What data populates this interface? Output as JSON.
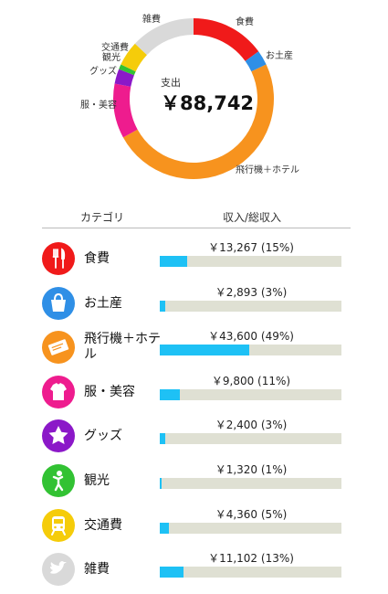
{
  "summary": {
    "total_label": "支出",
    "total_value": "￥88,742"
  },
  "donut_labels": {
    "food": "食費",
    "souvenirs": "お土産",
    "flight_hotel": "飛行機＋ホテル",
    "clothes_beauty": "服・美容",
    "goods": "グッズ",
    "sightseeing": "観光",
    "transport": "交通費",
    "misc": "雑費"
  },
  "table": {
    "header_category": "カテゴリ",
    "header_income": "収入/総収入"
  },
  "categories": [
    {
      "name": "食費",
      "amount": "￥13,267 (15%)",
      "share": 0.15,
      "color": "#f01a1a",
      "icon": "utensils-icon"
    },
    {
      "name": "お土産",
      "amount": "￥2,893 (3%)",
      "share": 0.03,
      "color": "#2f8fe6",
      "icon": "shopping-bag-icon"
    },
    {
      "name": "飛行機＋ホテル",
      "amount": "￥43,600 (49%)",
      "share": 0.49,
      "color": "#f7931e",
      "icon": "ticket-icon"
    },
    {
      "name": "服・美容",
      "amount": "￥9,800 (11%)",
      "share": 0.11,
      "color": "#ee1c8e",
      "icon": "shirt-icon"
    },
    {
      "name": "グッズ",
      "amount": "￥2,400 (3%)",
      "share": 0.03,
      "color": "#8b18c8",
      "icon": "star-icon"
    },
    {
      "name": "観光",
      "amount": "￥1,320 (1%)",
      "share": 0.01,
      "color": "#32c233",
      "icon": "person-icon"
    },
    {
      "name": "交通費",
      "amount": "￥4,360 (5%)",
      "share": 0.05,
      "color": "#f5cc0a",
      "icon": "train-icon"
    },
    {
      "name": "雑費",
      "amount": "￥11,102 (13%)",
      "share": 0.13,
      "color": "#d9d9d9",
      "icon": "bird-icon"
    }
  ],
  "bar_fill_color": "#1ec1f5",
  "bar_track_color": "#dfe0d3"
}
